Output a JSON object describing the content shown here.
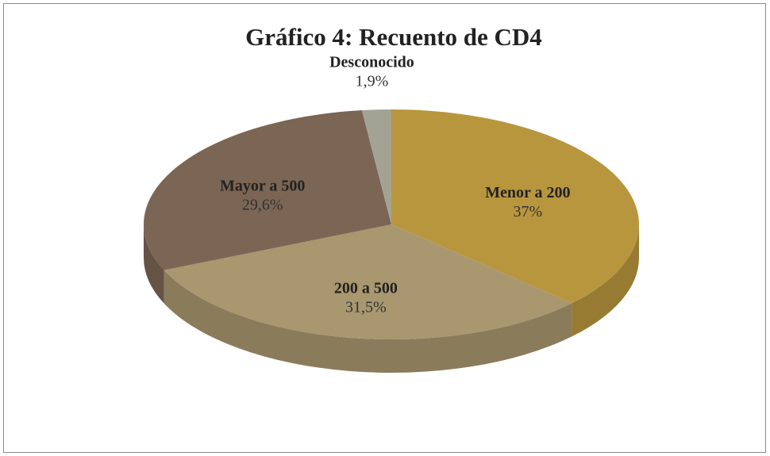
{
  "chart_data": {
    "type": "pie",
    "title": "Gráfico 4: Recuento de CD4",
    "categories": [
      "Menor a 200",
      "200 a 500",
      "Mayor a 500",
      "Desconocido"
    ],
    "values": [
      37,
      31.5,
      29.6,
      1.9
    ],
    "value_labels": [
      "37%",
      "31,5%",
      "29,6%",
      "1,9%"
    ],
    "colors": [
      "#b8963e",
      "#a8976f",
      "#7b6554",
      "#a3a395"
    ]
  }
}
